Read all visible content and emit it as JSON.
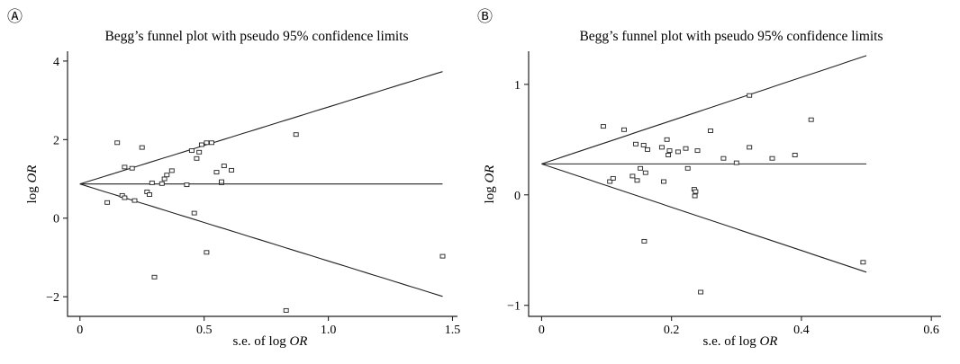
{
  "chart_data": [
    {
      "panel": "Ⓐ",
      "type": "scatter",
      "title": "Begg’s funnel plot with pseudo 95% confidence limits",
      "xlabel_prefix": "s.e. of  log ",
      "xlabel_italic": "OR",
      "ylabel_prefix": "log ",
      "ylabel_italic": "OR",
      "xlim": [
        -0.05,
        1.52
      ],
      "ylim": [
        -2.5,
        4.25
      ],
      "xticks": [
        0,
        0.5,
        1.0,
        1.5
      ],
      "xtick_labels": [
        "0",
        "0.5",
        "1.0",
        "1.5"
      ],
      "yticks": [
        -2,
        0,
        2,
        4
      ],
      "ytick_labels": [
        "−2",
        "0",
        "2",
        "4"
      ],
      "pooled": 0.87,
      "limit_se_max": 1.46,
      "points": [
        [
          0.11,
          0.4
        ],
        [
          0.15,
          1.92
        ],
        [
          0.17,
          0.58
        ],
        [
          0.18,
          1.3
        ],
        [
          0.18,
          0.52
        ],
        [
          0.21,
          1.27
        ],
        [
          0.22,
          0.45
        ],
        [
          0.25,
          1.8
        ],
        [
          0.27,
          0.67
        ],
        [
          0.28,
          0.6
        ],
        [
          0.29,
          0.9
        ],
        [
          0.3,
          -1.5
        ],
        [
          0.33,
          0.88
        ],
        [
          0.34,
          1.0
        ],
        [
          0.35,
          1.1
        ],
        [
          0.37,
          1.21
        ],
        [
          0.43,
          0.85
        ],
        [
          0.45,
          1.72
        ],
        [
          0.46,
          0.13
        ],
        [
          0.47,
          1.52
        ],
        [
          0.48,
          1.68
        ],
        [
          0.49,
          1.87
        ],
        [
          0.51,
          1.92
        ],
        [
          0.51,
          -0.87
        ],
        [
          0.53,
          1.92
        ],
        [
          0.55,
          1.17
        ],
        [
          0.57,
          0.9
        ],
        [
          0.57,
          0.93
        ],
        [
          0.58,
          1.33
        ],
        [
          0.61,
          1.22
        ],
        [
          0.83,
          -2.35
        ],
        [
          0.87,
          2.13
        ],
        [
          1.46,
          -0.97
        ]
      ]
    },
    {
      "panel": "Ⓑ",
      "type": "scatter",
      "title": "Begg’s funnel plot with pseudo 95% confidence limits",
      "xlabel_prefix": "s.e. of  log ",
      "xlabel_italic": "OR",
      "ylabel_prefix": "log ",
      "ylabel_italic": "OR",
      "xlim": [
        -0.02,
        0.615
      ],
      "ylim": [
        -1.1,
        1.3
      ],
      "xticks": [
        0,
        0.2,
        0.4,
        0.6
      ],
      "xtick_labels": [
        "0",
        "0.2",
        "0.4",
        "0.6"
      ],
      "yticks": [
        -1,
        0,
        1
      ],
      "ytick_labels": [
        "−1",
        "0",
        "1"
      ],
      "pooled": 0.28,
      "limit_se_max": 0.5,
      "points": [
        [
          0.095,
          0.62
        ],
        [
          0.105,
          0.12
        ],
        [
          0.11,
          0.15
        ],
        [
          0.127,
          0.59
        ],
        [
          0.14,
          0.17
        ],
        [
          0.145,
          0.46
        ],
        [
          0.147,
          0.13
        ],
        [
          0.152,
          0.24
        ],
        [
          0.157,
          0.45
        ],
        [
          0.158,
          -0.42
        ],
        [
          0.16,
          0.2
        ],
        [
          0.163,
          0.41
        ],
        [
          0.185,
          0.43
        ],
        [
          0.188,
          0.12
        ],
        [
          0.193,
          0.5
        ],
        [
          0.195,
          0.36
        ],
        [
          0.197,
          0.4
        ],
        [
          0.21,
          0.39
        ],
        [
          0.222,
          0.42
        ],
        [
          0.225,
          0.24
        ],
        [
          0.235,
          0.05
        ],
        [
          0.237,
          0.03
        ],
        [
          0.236,
          -0.01
        ],
        [
          0.24,
          0.4
        ],
        [
          0.245,
          -0.88
        ],
        [
          0.26,
          0.58
        ],
        [
          0.28,
          0.33
        ],
        [
          0.3,
          0.29
        ],
        [
          0.32,
          0.43
        ],
        [
          0.32,
          0.9
        ],
        [
          0.355,
          0.33
        ],
        [
          0.39,
          0.36
        ],
        [
          0.415,
          0.68
        ],
        [
          0.495,
          -0.61
        ]
      ]
    }
  ]
}
